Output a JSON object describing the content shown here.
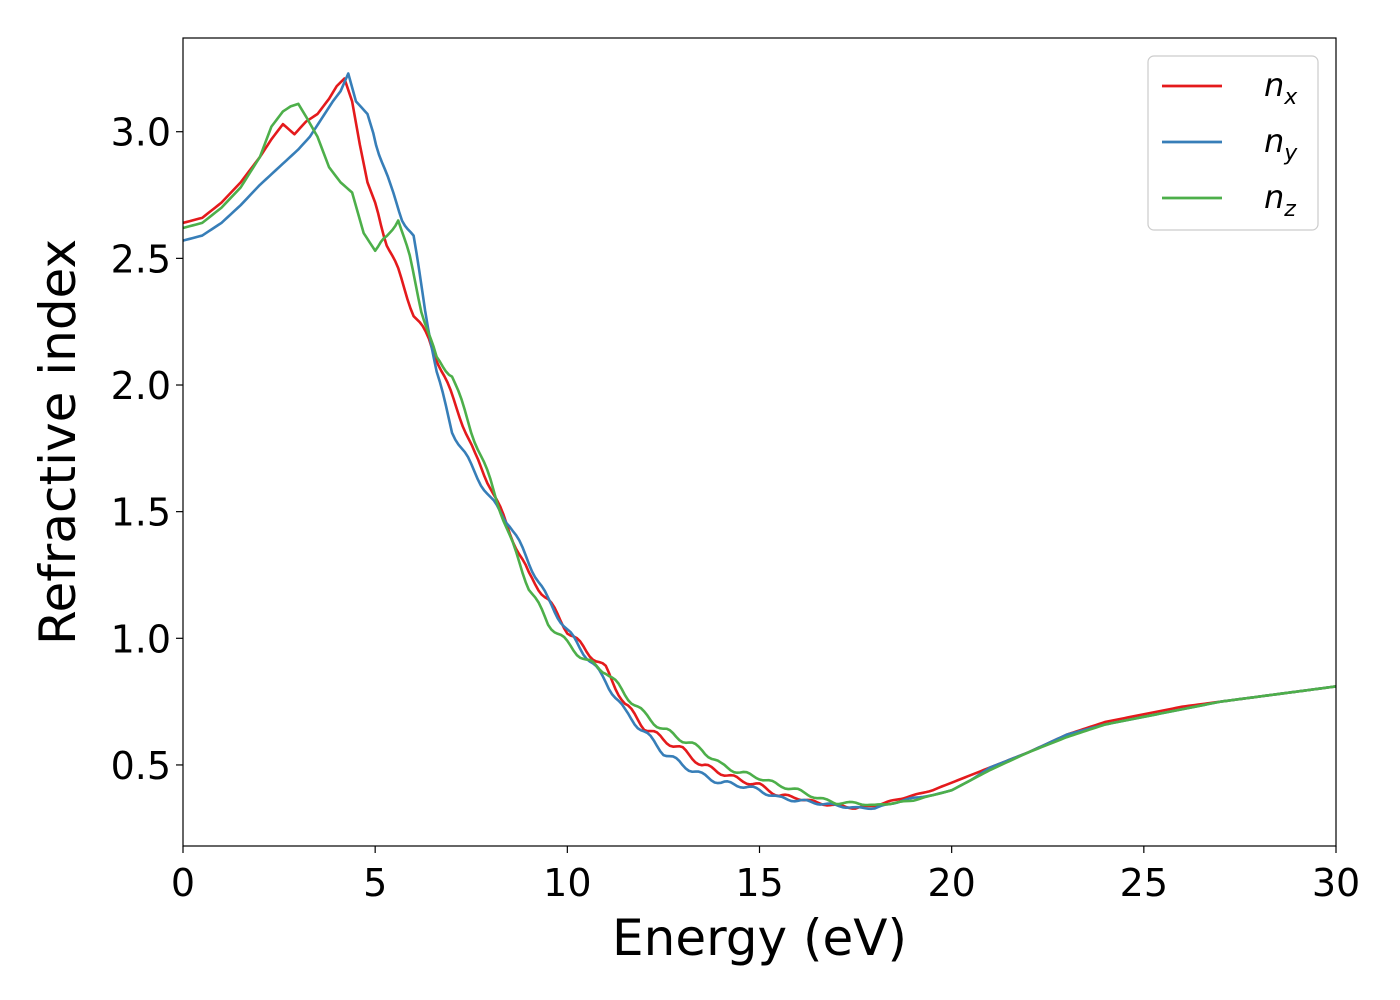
{
  "chart_data": {
    "type": "line",
    "title": "",
    "xlabel": "Energy (eV)",
    "ylabel": "Refractive index",
    "xlim": [
      0,
      30
    ],
    "ylim": [
      0.18,
      3.37
    ],
    "xticks": [
      0,
      5,
      10,
      15,
      20,
      25,
      30
    ],
    "xtick_labels": [
      "0",
      "5",
      "10",
      "15",
      "20",
      "25",
      "30"
    ],
    "yticks": [
      0.5,
      1.0,
      1.5,
      2.0,
      2.5,
      3.0
    ],
    "ytick_labels": [
      "0.5",
      "1.0",
      "1.5",
      "2.0",
      "2.5",
      "3.0"
    ],
    "grid": false,
    "legend_position": "top-right",
    "series": [
      {
        "name": "n_x",
        "label_base": "n",
        "label_sub": "x",
        "color": "#e41a1c",
        "x": [
          0,
          0.5,
          1,
          1.5,
          2,
          2.3,
          2.6,
          2.9,
          3.2,
          3.5,
          3.8,
          4.0,
          4.2,
          4.4,
          4.6,
          4.8,
          5.0,
          5.3,
          5.6,
          6.0,
          6.4,
          6.8,
          7.2,
          7.6,
          8.0,
          8.5,
          9.0,
          9.5,
          10.0,
          10.5,
          11.0,
          11.5,
          12.0,
          12.5,
          13.0,
          13.5,
          14.0,
          14.5,
          15.0,
          15.5,
          16.0,
          16.5,
          17.0,
          17.5,
          18.0,
          18.5,
          19.0,
          19.5,
          20.0,
          20.5,
          21.0,
          22.0,
          23.0,
          24.0,
          25.0,
          26.0,
          27.0,
          28.0,
          29.0,
          30.0
        ],
        "y": [
          2.64,
          2.66,
          2.72,
          2.8,
          2.9,
          2.97,
          3.03,
          2.99,
          3.04,
          3.07,
          3.13,
          3.18,
          3.21,
          3.12,
          2.95,
          2.8,
          2.72,
          2.56,
          2.45,
          2.28,
          2.18,
          2.03,
          1.88,
          1.72,
          1.6,
          1.42,
          1.25,
          1.15,
          1.03,
          0.95,
          0.88,
          0.74,
          0.65,
          0.6,
          0.56,
          0.5,
          0.47,
          0.44,
          0.42,
          0.38,
          0.37,
          0.35,
          0.34,
          0.33,
          0.34,
          0.36,
          0.38,
          0.4,
          0.43,
          0.46,
          0.49,
          0.55,
          0.62,
          0.67,
          0.7,
          0.73,
          0.75,
          0.77,
          0.79,
          0.81
        ]
      },
      {
        "name": "n_y",
        "label_base": "n",
        "label_sub": "y",
        "color": "#377eb8",
        "x": [
          0,
          0.5,
          1,
          1.5,
          2,
          2.5,
          3.0,
          3.3,
          3.6,
          3.9,
          4.1,
          4.3,
          4.5,
          4.8,
          5.1,
          5.4,
          5.7,
          6.0,
          6.3,
          6.6,
          7.0,
          7.5,
          8.0,
          8.5,
          9.0,
          9.5,
          10.0,
          10.5,
          11.0,
          11.5,
          12.0,
          12.5,
          13.0,
          13.5,
          14.0,
          14.5,
          15.0,
          15.5,
          16.0,
          16.5,
          17.0,
          17.5,
          18.0,
          18.5,
          19.0,
          19.5,
          20.0,
          20.5,
          21.0,
          22.0,
          23.0,
          24.0,
          25.0,
          26.0,
          27.0,
          28.0,
          29.0,
          30.0
        ],
        "y": [
          2.57,
          2.59,
          2.64,
          2.71,
          2.79,
          2.86,
          2.93,
          2.98,
          3.05,
          3.12,
          3.16,
          3.23,
          3.12,
          3.07,
          2.92,
          2.78,
          2.66,
          2.58,
          2.3,
          2.05,
          1.82,
          1.68,
          1.55,
          1.45,
          1.3,
          1.15,
          1.03,
          0.93,
          0.83,
          0.71,
          0.63,
          0.55,
          0.5,
          0.46,
          0.43,
          0.42,
          0.4,
          0.37,
          0.36,
          0.35,
          0.34,
          0.33,
          0.33,
          0.35,
          0.37,
          0.38,
          0.4,
          0.44,
          0.49,
          0.55,
          0.62,
          0.66,
          0.69,
          0.72,
          0.75,
          0.77,
          0.79,
          0.81
        ]
      },
      {
        "name": "n_z",
        "label_base": "n",
        "label_sub": "z",
        "color": "#4daf4a",
        "x": [
          0,
          0.5,
          1,
          1.5,
          2,
          2.3,
          2.6,
          2.8,
          3.0,
          3.2,
          3.5,
          3.8,
          4.1,
          4.4,
          4.7,
          5.0,
          5.3,
          5.6,
          5.9,
          6.2,
          6.6,
          7.0,
          7.5,
          8.0,
          8.5,
          9.0,
          9.5,
          10.0,
          10.5,
          11.0,
          11.5,
          12.0,
          12.5,
          13.0,
          13.5,
          14.0,
          14.5,
          15.0,
          15.5,
          16.0,
          16.5,
          17.0,
          17.5,
          18.0,
          18.5,
          19.0,
          19.5,
          20.0,
          20.5,
          21.0,
          22.0,
          23.0,
          24.0,
          25.0,
          26.0,
          27.0,
          28.0,
          29.0,
          30.0
        ],
        "y": [
          2.62,
          2.64,
          2.7,
          2.78,
          2.9,
          3.02,
          3.08,
          3.1,
          3.11,
          3.06,
          2.98,
          2.86,
          2.8,
          2.76,
          2.6,
          2.53,
          2.58,
          2.66,
          2.5,
          2.3,
          2.1,
          2.04,
          1.82,
          1.62,
          1.4,
          1.2,
          1.06,
          0.98,
          0.91,
          0.87,
          0.78,
          0.7,
          0.64,
          0.6,
          0.56,
          0.5,
          0.47,
          0.45,
          0.42,
          0.4,
          0.37,
          0.35,
          0.35,
          0.34,
          0.35,
          0.36,
          0.38,
          0.4,
          0.44,
          0.48,
          0.55,
          0.61,
          0.66,
          0.69,
          0.72,
          0.75,
          0.77,
          0.79,
          0.81
        ]
      }
    ]
  }
}
